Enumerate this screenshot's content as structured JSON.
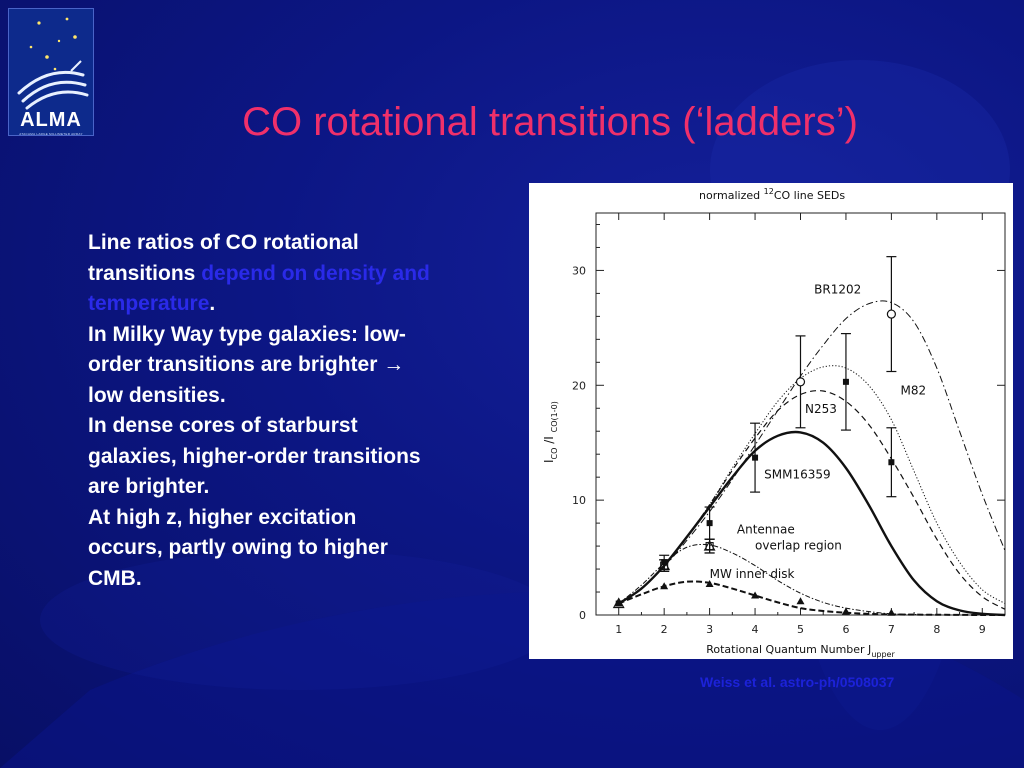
{
  "slide": {
    "title": "CO rotational transitions (‘ladders’)",
    "logo": {
      "text": "ALMA",
      "subtitle": "ATACAMA LARGE MILLIMETER ARRAY"
    },
    "body": [
      {
        "text": "Line ratios of CO rotational transitions ",
        "highlight": "depend on density and temperature",
        "tail": "."
      },
      {
        "text": "In Milky Way type galaxies: low-order transitions are brighter → low densities."
      },
      {
        "text": "In dense cores of starburst galaxies, higher-order transitions are brighter."
      },
      {
        "text": "At high z, higher excitation occurs, partly owing to higher CMB."
      }
    ],
    "citation": "Weiss et al. astro-ph/0508037",
    "colors": {
      "title": "#f0306a",
      "highlight": "#2a2ae8",
      "background": "#0c1684",
      "citation": "#1c22d8"
    }
  },
  "chart_data": {
    "type": "line",
    "title": {
      "main": "normalized ",
      "sup": "12",
      "rest": "CO line SEDs"
    },
    "xlabel": {
      "main": "Rotational Quantum Number J",
      "sub": "upper"
    },
    "ylabel": {
      "i1": "I",
      "s1": "CO",
      "sep": " /I ",
      "s2": "CO(1-0)"
    },
    "xlim": [
      0.5,
      9.5
    ],
    "ylim": [
      0,
      35
    ],
    "xticks": [
      1,
      2,
      3,
      4,
      5,
      6,
      7,
      8,
      9
    ],
    "yticks": [
      0,
      10,
      20,
      30
    ],
    "grid": false,
    "curves": [
      {
        "name": "BR1202",
        "style": "dash-dot",
        "x": [
          1,
          1.5,
          2,
          2.5,
          3,
          3.5,
          4,
          4.5,
          5,
          5.5,
          6,
          6.5,
          7,
          7.5,
          8,
          8.5,
          9,
          9.5
        ],
        "y": [
          1,
          2.3,
          4.2,
          6.5,
          9,
          11.8,
          14.8,
          17.8,
          20.8,
          23.5,
          25.8,
          27.1,
          27.2,
          25.5,
          21.5,
          16,
          10.5,
          5.6
        ]
      },
      {
        "name": "M82",
        "style": "dotted",
        "x": [
          1,
          1.5,
          2,
          2.5,
          3,
          3.5,
          4,
          4.5,
          5,
          5.5,
          6,
          6.5,
          7,
          7.5,
          8,
          8.5,
          9,
          9.5
        ],
        "y": [
          1,
          2.3,
          4.3,
          6.8,
          9.6,
          12.8,
          15.8,
          18.6,
          20.6,
          21.6,
          21.5,
          20,
          17,
          12.5,
          8,
          4.6,
          2.2,
          1
        ]
      },
      {
        "name": "N253",
        "style": "dashed",
        "x": [
          1,
          1.5,
          2,
          2.5,
          3,
          3.5,
          4,
          4.5,
          5,
          5.5,
          6,
          6.5,
          7,
          7.5,
          8,
          8.5,
          9,
          9.5
        ],
        "y": [
          1,
          2.3,
          4.3,
          6.8,
          9.6,
          12.6,
          15.4,
          17.8,
          19.2,
          19.5,
          18.6,
          16.6,
          13.6,
          10.2,
          6.6,
          3.6,
          1.6,
          0.5
        ]
      },
      {
        "name": "SMM16359",
        "style": "solid-thick",
        "x": [
          1,
          1.5,
          2,
          2.5,
          3,
          3.5,
          4,
          4.5,
          5,
          5.5,
          6,
          6.5,
          7,
          7.5,
          8,
          8.5,
          9,
          9.5
        ],
        "y": [
          1,
          2.3,
          4.3,
          6.8,
          9.4,
          12,
          14.3,
          15.6,
          15.9,
          15,
          12.8,
          9.6,
          6,
          3,
          1.2,
          0.4,
          0.1,
          0
        ]
      },
      {
        "name": "Antennae overlap region",
        "style": "dash-dot-small",
        "x": [
          1,
          1.5,
          2,
          2.5,
          3,
          3.5,
          4,
          4.5,
          5,
          5.5,
          6,
          6.5,
          7,
          7.5,
          8
        ],
        "y": [
          1,
          2.6,
          4.5,
          5.9,
          6.1,
          5.4,
          4.3,
          3,
          1.9,
          1.1,
          0.6,
          0.3,
          0.1,
          0.05,
          0
        ]
      },
      {
        "name": "MW inner disk",
        "style": "dashed-thick",
        "x": [
          1,
          1.5,
          2,
          2.5,
          3,
          3.5,
          4,
          4.5,
          5,
          5.5,
          6,
          6.5,
          7,
          7.5,
          8,
          8.5,
          9,
          9.5
        ],
        "y": [
          1,
          1.8,
          2.5,
          2.9,
          2.8,
          2.3,
          1.7,
          1.1,
          0.6,
          0.35,
          0.2,
          0.1,
          0.05,
          0.03,
          0.02,
          0.01,
          0,
          0
        ]
      }
    ],
    "points": [
      {
        "name": "BR1202",
        "marker": "open-circle",
        "x": [
          5,
          7
        ],
        "y": [
          20.3,
          26.2
        ],
        "err": [
          4,
          5
        ]
      },
      {
        "name": "M82",
        "marker": "filled-square",
        "x": [
          1,
          2,
          3,
          4,
          6,
          7
        ],
        "y": [
          1,
          4.6,
          8,
          13.7,
          20.3,
          13.3
        ],
        "err": [
          0,
          0.6,
          1.4,
          3,
          4.2,
          3
        ]
      },
      {
        "name": "N253",
        "marker": "open-square",
        "x": [
          2,
          3
        ],
        "y": [
          4.3,
          6
        ],
        "err": [
          0.5,
          0.6
        ]
      },
      {
        "name": "Antennae overlap region",
        "marker": "open-triangle",
        "x": [
          1,
          2,
          3
        ],
        "y": [
          1,
          4.3,
          6
        ],
        "err": [
          0,
          0.5,
          0.6
        ]
      },
      {
        "name": "MW inner disk",
        "marker": "filled-triangle",
        "x": [
          1,
          2,
          3,
          4,
          5,
          6,
          7
        ],
        "y": [
          1,
          2.5,
          2.7,
          1.7,
          1.2,
          0.3,
          0.2
        ],
        "err": [
          0,
          0,
          0,
          0,
          0,
          0,
          0
        ]
      }
    ],
    "labels": [
      {
        "text": "BR1202",
        "x": 5.3,
        "y": 28
      },
      {
        "text": "M82",
        "x": 7.2,
        "y": 19.2
      },
      {
        "text": "N253",
        "x": 5.1,
        "y": 17.6
      },
      {
        "text": "SMM16359",
        "x": 4.2,
        "y": 11.9
      },
      {
        "text": "Antennae",
        "x": 3.6,
        "y": 7.1
      },
      {
        "text": "overlap region",
        "x": 4,
        "y": 5.7
      },
      {
        "text": "MW inner disk",
        "x": 3,
        "y": 3.2
      }
    ]
  }
}
